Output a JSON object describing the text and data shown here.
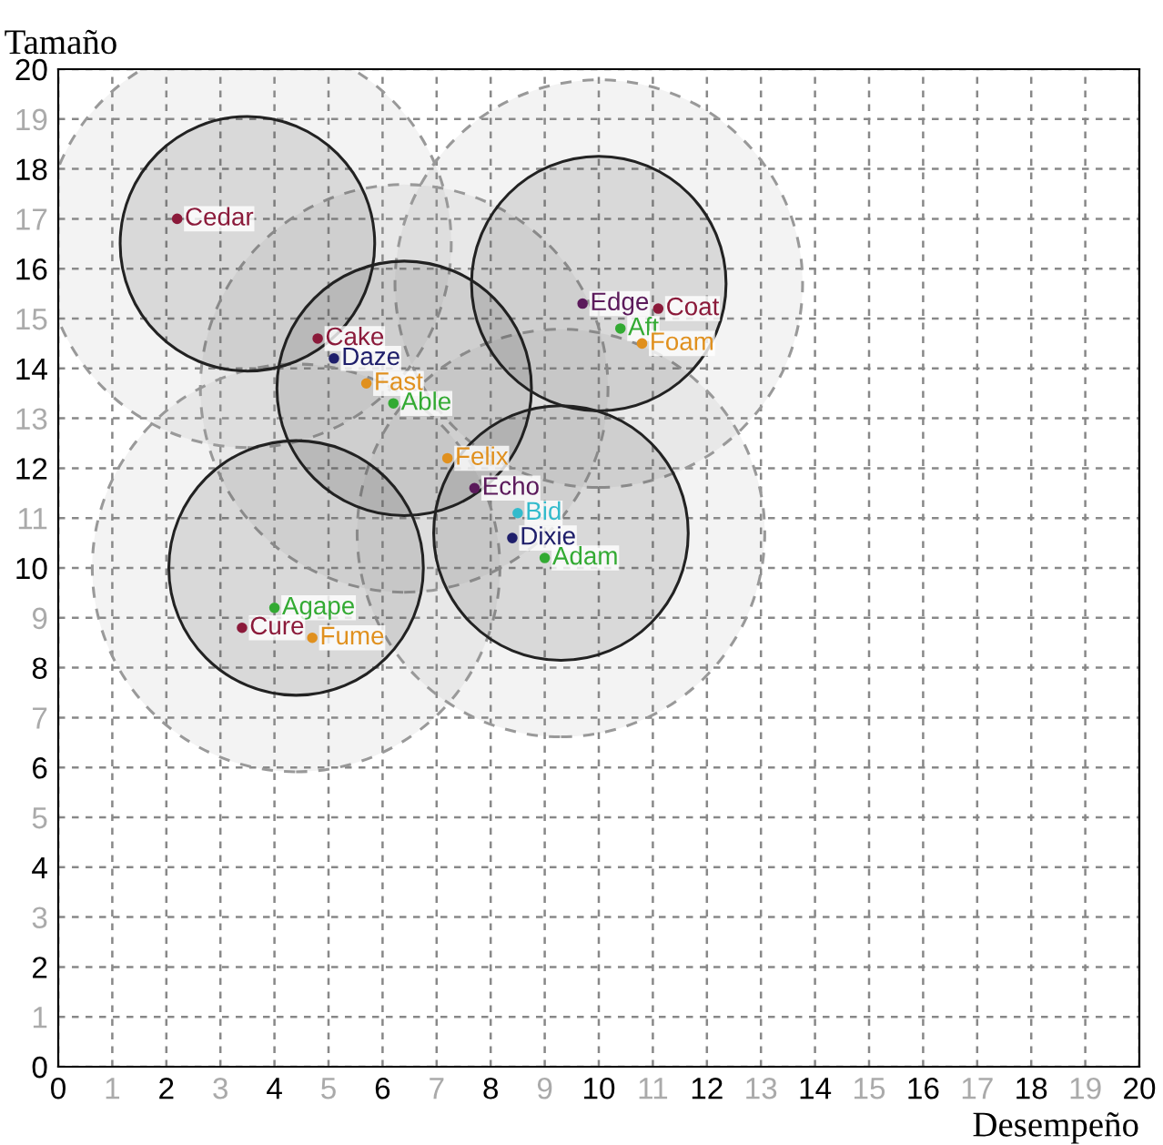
{
  "chart_data": {
    "type": "scatter",
    "xlabel": "Desempeño",
    "ylabel": "Tamaño",
    "xlim": [
      0,
      20
    ],
    "ylim": [
      0,
      20
    ],
    "xticks": [
      0,
      1,
      2,
      3,
      4,
      5,
      6,
      7,
      8,
      9,
      10,
      11,
      12,
      13,
      14,
      15,
      16,
      17,
      18,
      19,
      20
    ],
    "yticks": [
      0,
      1,
      2,
      3,
      4,
      5,
      6,
      7,
      8,
      9,
      10,
      11,
      12,
      13,
      14,
      15,
      16,
      17,
      18,
      19,
      20
    ],
    "grid": true,
    "marker": "circle",
    "legend": false,
    "series": [
      {
        "type": "bubble",
        "color": "#999999",
        "line_style": "dashed",
        "x": [
          3.5,
          6.4,
          10.0,
          4.4,
          9.3
        ],
        "values": [
          16.5,
          13.6,
          15.7,
          10.0,
          10.7
        ],
        "sizes": [
          1,
          1,
          1,
          1,
          1
        ]
      },
      {
        "type": "bubble",
        "color": "#222222",
        "line_style": "solid",
        "x": [
          3.5,
          6.4,
          10.0,
          4.4,
          9.3
        ],
        "values": [
          16.5,
          13.6,
          15.7,
          10.0,
          10.7
        ],
        "sizes": [
          0.39,
          0.39,
          0.39,
          0.39,
          0.39
        ]
      },
      {
        "name": "Cedar",
        "color": "#8b1a3a",
        "x": [
          2.2
        ],
        "values": [
          17.0
        ]
      },
      {
        "name": "Cake",
        "color": "#8b1a3a",
        "x": [
          4.8
        ],
        "values": [
          14.6
        ]
      },
      {
        "name": "Daze",
        "color": "#1f1f6b",
        "x": [
          5.1
        ],
        "values": [
          14.2
        ]
      },
      {
        "name": "Fast",
        "color": "#e0901e",
        "x": [
          5.7
        ],
        "values": [
          13.7
        ]
      },
      {
        "name": "Able",
        "color": "#33aa33",
        "x": [
          6.2
        ],
        "values": [
          13.3
        ]
      },
      {
        "name": "Felix",
        "color": "#e0901e",
        "x": [
          7.2
        ],
        "values": [
          12.2
        ]
      },
      {
        "name": "Echo",
        "color": "#5b1a5b",
        "x": [
          7.7
        ],
        "values": [
          11.6
        ]
      },
      {
        "name": "Bid",
        "color": "#33bbcc",
        "x": [
          8.5
        ],
        "values": [
          11.1
        ]
      },
      {
        "name": "Dixie",
        "color": "#1f1f6b",
        "x": [
          8.4
        ],
        "values": [
          10.6
        ]
      },
      {
        "name": "Adam",
        "color": "#33aa33",
        "x": [
          9.0
        ],
        "values": [
          10.2
        ]
      },
      {
        "name": "Edge",
        "color": "#5b1a5b",
        "x": [
          9.7
        ],
        "values": [
          15.3
        ]
      },
      {
        "name": "Coat",
        "color": "#8b1a3a",
        "x": [
          11.1
        ],
        "values": [
          15.2
        ]
      },
      {
        "name": "Aft",
        "color": "#33aa33",
        "x": [
          10.4
        ],
        "values": [
          14.8
        ]
      },
      {
        "name": "Foam",
        "color": "#e0901e",
        "x": [
          10.8
        ],
        "values": [
          14.5
        ]
      },
      {
        "name": "Agape",
        "color": "#33aa33",
        "x": [
          4.0
        ],
        "values": [
          9.2
        ]
      },
      {
        "name": "Cure",
        "color": "#8b1a3a",
        "x": [
          3.4
        ],
        "values": [
          8.8
        ]
      },
      {
        "name": "Fume",
        "color": "#e0901e",
        "x": [
          4.7
        ],
        "values": [
          8.6
        ]
      }
    ]
  }
}
